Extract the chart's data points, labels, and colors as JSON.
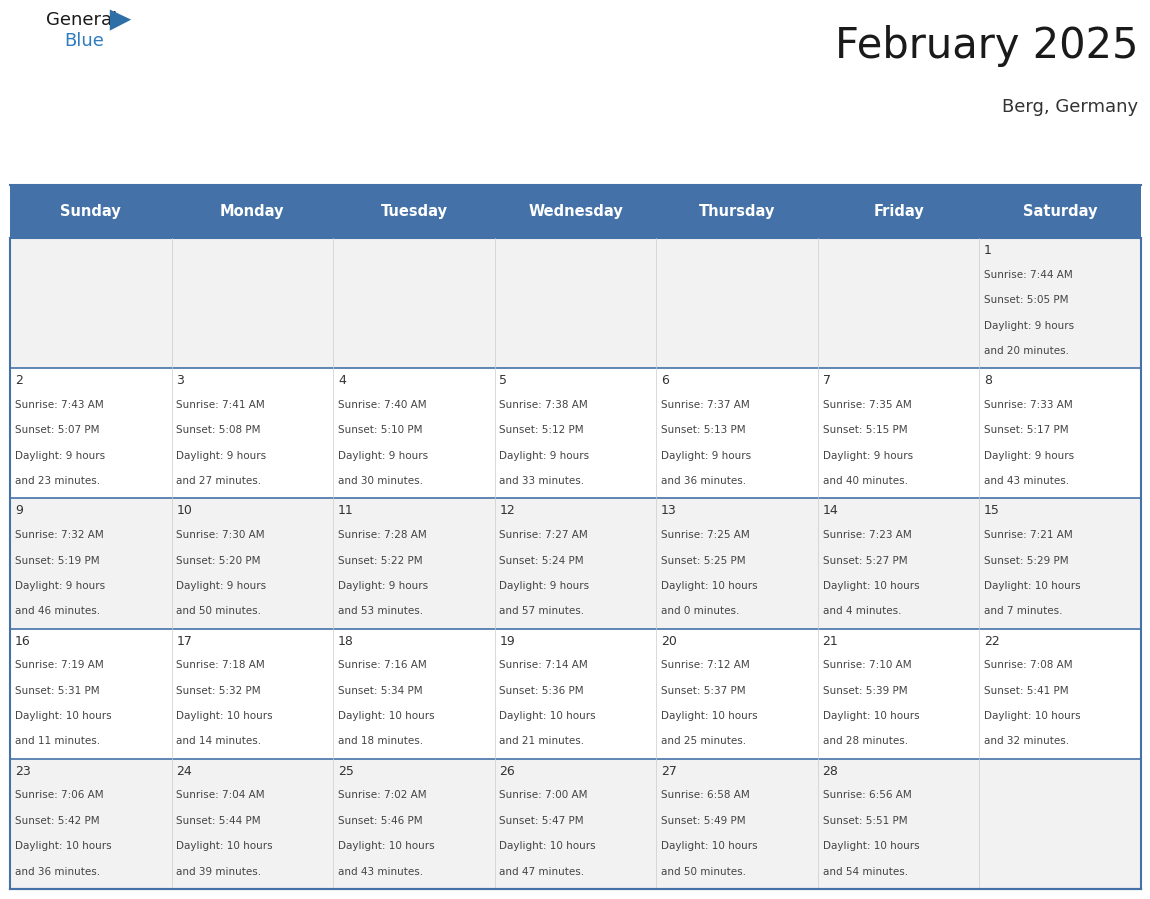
{
  "title": "February 2025",
  "subtitle": "Berg, Germany",
  "days_of_week": [
    "Sunday",
    "Monday",
    "Tuesday",
    "Wednesday",
    "Thursday",
    "Friday",
    "Saturday"
  ],
  "header_bg": "#4472a8",
  "header_text": "#ffffff",
  "row_bg_odd": "#f2f2f2",
  "row_bg_even": "#ffffff",
  "border_color": "#4472a8",
  "text_color": "#444444",
  "day_num_color": "#333333",
  "logo_blue_color": "#2e7bbf",
  "calendar_data": [
    {
      "day": 1,
      "col": 6,
      "row": 0,
      "sunrise": "7:44 AM",
      "sunset": "5:05 PM",
      "daylight_a": "9 hours",
      "daylight_b": "and 20 minutes."
    },
    {
      "day": 2,
      "col": 0,
      "row": 1,
      "sunrise": "7:43 AM",
      "sunset": "5:07 PM",
      "daylight_a": "9 hours",
      "daylight_b": "and 23 minutes."
    },
    {
      "day": 3,
      "col": 1,
      "row": 1,
      "sunrise": "7:41 AM",
      "sunset": "5:08 PM",
      "daylight_a": "9 hours",
      "daylight_b": "and 27 minutes."
    },
    {
      "day": 4,
      "col": 2,
      "row": 1,
      "sunrise": "7:40 AM",
      "sunset": "5:10 PM",
      "daylight_a": "9 hours",
      "daylight_b": "and 30 minutes."
    },
    {
      "day": 5,
      "col": 3,
      "row": 1,
      "sunrise": "7:38 AM",
      "sunset": "5:12 PM",
      "daylight_a": "9 hours",
      "daylight_b": "and 33 minutes."
    },
    {
      "day": 6,
      "col": 4,
      "row": 1,
      "sunrise": "7:37 AM",
      "sunset": "5:13 PM",
      "daylight_a": "9 hours",
      "daylight_b": "and 36 minutes."
    },
    {
      "day": 7,
      "col": 5,
      "row": 1,
      "sunrise": "7:35 AM",
      "sunset": "5:15 PM",
      "daylight_a": "9 hours",
      "daylight_b": "and 40 minutes."
    },
    {
      "day": 8,
      "col": 6,
      "row": 1,
      "sunrise": "7:33 AM",
      "sunset": "5:17 PM",
      "daylight_a": "9 hours",
      "daylight_b": "and 43 minutes."
    },
    {
      "day": 9,
      "col": 0,
      "row": 2,
      "sunrise": "7:32 AM",
      "sunset": "5:19 PM",
      "daylight_a": "9 hours",
      "daylight_b": "and 46 minutes."
    },
    {
      "day": 10,
      "col": 1,
      "row": 2,
      "sunrise": "7:30 AM",
      "sunset": "5:20 PM",
      "daylight_a": "9 hours",
      "daylight_b": "and 50 minutes."
    },
    {
      "day": 11,
      "col": 2,
      "row": 2,
      "sunrise": "7:28 AM",
      "sunset": "5:22 PM",
      "daylight_a": "9 hours",
      "daylight_b": "and 53 minutes."
    },
    {
      "day": 12,
      "col": 3,
      "row": 2,
      "sunrise": "7:27 AM",
      "sunset": "5:24 PM",
      "daylight_a": "9 hours",
      "daylight_b": "and 57 minutes."
    },
    {
      "day": 13,
      "col": 4,
      "row": 2,
      "sunrise": "7:25 AM",
      "sunset": "5:25 PM",
      "daylight_a": "10 hours",
      "daylight_b": "and 0 minutes."
    },
    {
      "day": 14,
      "col": 5,
      "row": 2,
      "sunrise": "7:23 AM",
      "sunset": "5:27 PM",
      "daylight_a": "10 hours",
      "daylight_b": "and 4 minutes."
    },
    {
      "day": 15,
      "col": 6,
      "row": 2,
      "sunrise": "7:21 AM",
      "sunset": "5:29 PM",
      "daylight_a": "10 hours",
      "daylight_b": "and 7 minutes."
    },
    {
      "day": 16,
      "col": 0,
      "row": 3,
      "sunrise": "7:19 AM",
      "sunset": "5:31 PM",
      "daylight_a": "10 hours",
      "daylight_b": "and 11 minutes."
    },
    {
      "day": 17,
      "col": 1,
      "row": 3,
      "sunrise": "7:18 AM",
      "sunset": "5:32 PM",
      "daylight_a": "10 hours",
      "daylight_b": "and 14 minutes."
    },
    {
      "day": 18,
      "col": 2,
      "row": 3,
      "sunrise": "7:16 AM",
      "sunset": "5:34 PM",
      "daylight_a": "10 hours",
      "daylight_b": "and 18 minutes."
    },
    {
      "day": 19,
      "col": 3,
      "row": 3,
      "sunrise": "7:14 AM",
      "sunset": "5:36 PM",
      "daylight_a": "10 hours",
      "daylight_b": "and 21 minutes."
    },
    {
      "day": 20,
      "col": 4,
      "row": 3,
      "sunrise": "7:12 AM",
      "sunset": "5:37 PM",
      "daylight_a": "10 hours",
      "daylight_b": "and 25 minutes."
    },
    {
      "day": 21,
      "col": 5,
      "row": 3,
      "sunrise": "7:10 AM",
      "sunset": "5:39 PM",
      "daylight_a": "10 hours",
      "daylight_b": "and 28 minutes."
    },
    {
      "day": 22,
      "col": 6,
      "row": 3,
      "sunrise": "7:08 AM",
      "sunset": "5:41 PM",
      "daylight_a": "10 hours",
      "daylight_b": "and 32 minutes."
    },
    {
      "day": 23,
      "col": 0,
      "row": 4,
      "sunrise": "7:06 AM",
      "sunset": "5:42 PM",
      "daylight_a": "10 hours",
      "daylight_b": "and 36 minutes."
    },
    {
      "day": 24,
      "col": 1,
      "row": 4,
      "sunrise": "7:04 AM",
      "sunset": "5:44 PM",
      "daylight_a": "10 hours",
      "daylight_b": "and 39 minutes."
    },
    {
      "day": 25,
      "col": 2,
      "row": 4,
      "sunrise": "7:02 AM",
      "sunset": "5:46 PM",
      "daylight_a": "10 hours",
      "daylight_b": "and 43 minutes."
    },
    {
      "day": 26,
      "col": 3,
      "row": 4,
      "sunrise": "7:00 AM",
      "sunset": "5:47 PM",
      "daylight_a": "10 hours",
      "daylight_b": "and 47 minutes."
    },
    {
      "day": 27,
      "col": 4,
      "row": 4,
      "sunrise": "6:58 AM",
      "sunset": "5:49 PM",
      "daylight_a": "10 hours",
      "daylight_b": "and 50 minutes."
    },
    {
      "day": 28,
      "col": 5,
      "row": 4,
      "sunrise": "6:56 AM",
      "sunset": "5:51 PM",
      "daylight_a": "10 hours",
      "daylight_b": "and 54 minutes."
    }
  ]
}
